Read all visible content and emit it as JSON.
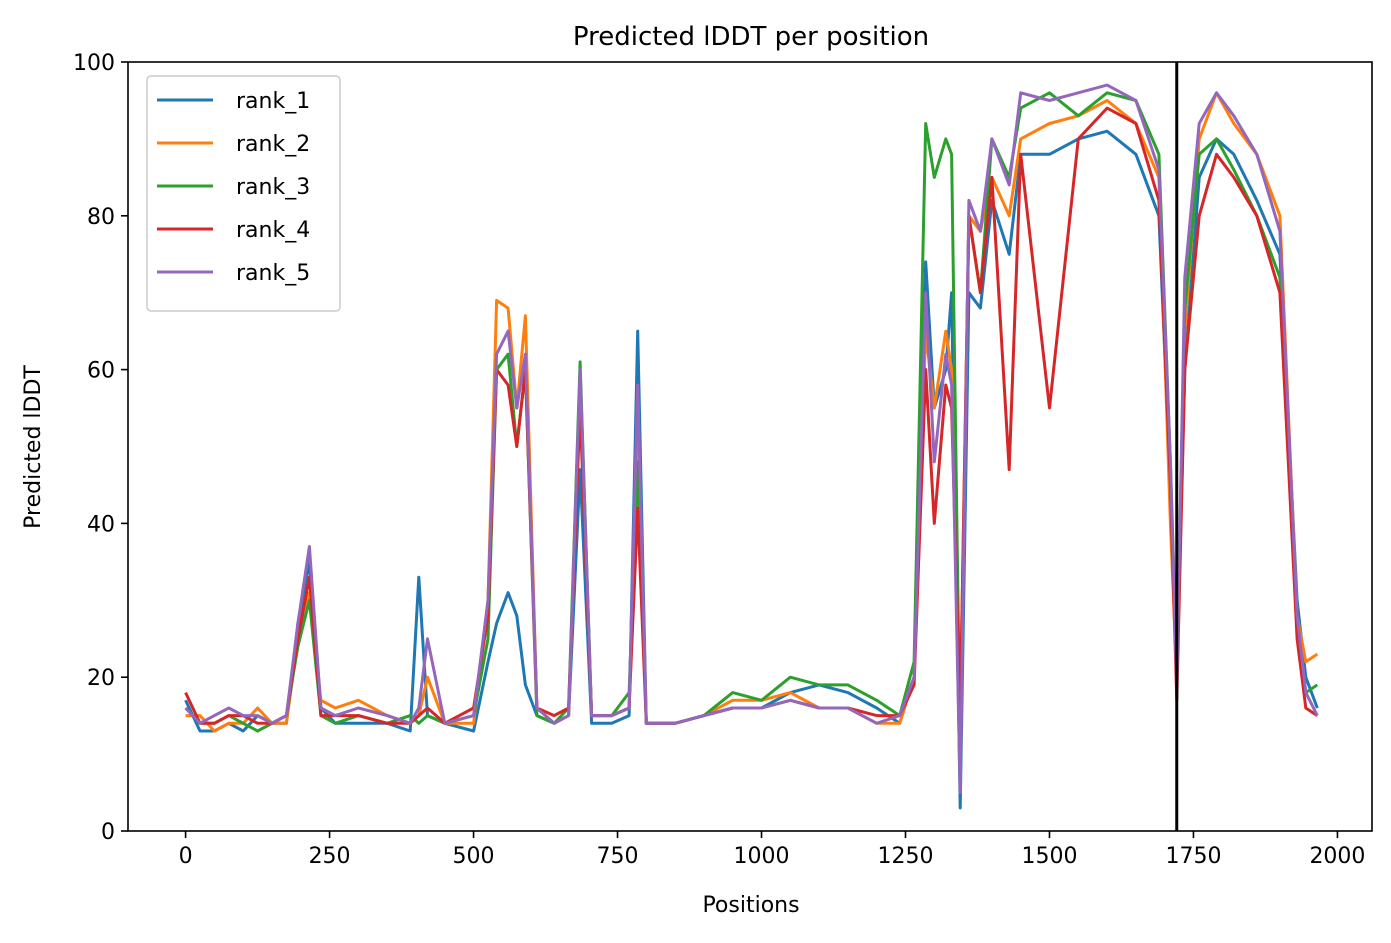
{
  "chart_data": {
    "type": "line",
    "title": "Predicted lDDT per position",
    "xlabel": "Positions",
    "ylabel": "Predicted lDDT",
    "xlim": [
      -100,
      2060
    ],
    "ylim": [
      0,
      100
    ],
    "xticks": [
      0,
      250,
      500,
      750,
      1000,
      1250,
      1500,
      1750,
      2000
    ],
    "yticks": [
      0,
      20,
      40,
      60,
      80,
      100
    ],
    "grid": false,
    "legend_position": "top-left",
    "vline": 1721,
    "vline_color": "#000000",
    "x": [
      0,
      25,
      50,
      75,
      100,
      125,
      150,
      175,
      195,
      215,
      235,
      260,
      300,
      350,
      390,
      405,
      420,
      450,
      500,
      525,
      540,
      560,
      575,
      590,
      610,
      640,
      665,
      685,
      705,
      740,
      770,
      785,
      800,
      850,
      900,
      950,
      1000,
      1050,
      1100,
      1150,
      1200,
      1240,
      1265,
      1285,
      1300,
      1320,
      1330,
      1345,
      1360,
      1380,
      1400,
      1430,
      1450,
      1500,
      1550,
      1600,
      1650,
      1690,
      1710,
      1721,
      1735,
      1760,
      1790,
      1820,
      1860,
      1900,
      1930,
      1945,
      1965
    ],
    "series": [
      {
        "name": "rank_1",
        "color": "#1f77b4",
        "values": [
          17,
          13,
          13,
          14,
          13,
          15,
          14,
          14,
          27,
          35,
          16,
          14,
          14,
          14,
          13,
          33,
          15,
          14,
          13,
          22,
          27,
          31,
          28,
          19,
          15,
          14,
          15,
          47,
          14,
          14,
          15,
          65,
          14,
          14,
          15,
          16,
          16,
          18,
          19,
          18,
          16,
          14,
          20,
          74,
          55,
          60,
          70,
          3,
          70,
          68,
          82,
          75,
          88,
          88,
          90,
          91,
          88,
          80,
          45,
          20,
          60,
          85,
          90,
          88,
          82,
          75,
          30,
          20,
          16
        ]
      },
      {
        "name": "rank_2",
        "color": "#ff7f0e",
        "values": [
          15,
          15,
          13,
          14,
          14,
          16,
          14,
          14,
          25,
          31,
          17,
          16,
          17,
          15,
          14,
          15,
          20,
          14,
          14,
          30,
          69,
          68,
          55,
          67,
          16,
          14,
          15,
          58,
          15,
          15,
          16,
          55,
          14,
          14,
          15,
          17,
          17,
          18,
          16,
          16,
          14,
          14,
          20,
          65,
          55,
          65,
          60,
          15,
          80,
          78,
          85,
          80,
          90,
          92,
          93,
          95,
          92,
          85,
          40,
          20,
          65,
          90,
          96,
          92,
          88,
          80,
          28,
          22,
          23
        ]
      },
      {
        "name": "rank_3",
        "color": "#2ca02c",
        "values": [
          16,
          14,
          14,
          15,
          14,
          13,
          14,
          15,
          24,
          30,
          15,
          14,
          15,
          14,
          15,
          14,
          15,
          14,
          15,
          25,
          60,
          62,
          50,
          60,
          15,
          14,
          16,
          61,
          15,
          15,
          18,
          48,
          14,
          14,
          15,
          18,
          17,
          20,
          19,
          19,
          17,
          15,
          22,
          92,
          85,
          90,
          88,
          10,
          80,
          70,
          90,
          85,
          94,
          96,
          93,
          96,
          95,
          88,
          48,
          21,
          68,
          88,
          90,
          86,
          80,
          72,
          27,
          18,
          19
        ]
      },
      {
        "name": "rank_4",
        "color": "#d62728",
        "values": [
          18,
          14,
          14,
          15,
          15,
          14,
          14,
          15,
          25,
          33,
          15,
          15,
          15,
          14,
          14,
          15,
          16,
          14,
          16,
          28,
          60,
          58,
          50,
          60,
          16,
          15,
          16,
          55,
          15,
          15,
          16,
          42,
          14,
          14,
          15,
          16,
          16,
          17,
          16,
          16,
          15,
          15,
          19,
          60,
          40,
          58,
          55,
          15,
          80,
          70,
          85,
          47,
          88,
          55,
          90,
          94,
          92,
          82,
          45,
          17,
          60,
          80,
          88,
          85,
          80,
          70,
          25,
          16,
          15
        ]
      },
      {
        "name": "rank_5",
        "color": "#9467bd",
        "values": [
          16,
          14,
          15,
          16,
          15,
          15,
          14,
          15,
          27,
          37,
          16,
          15,
          16,
          15,
          14,
          16,
          25,
          14,
          15,
          30,
          62,
          65,
          55,
          62,
          16,
          14,
          15,
          60,
          15,
          15,
          16,
          58,
          14,
          14,
          15,
          16,
          16,
          17,
          16,
          16,
          14,
          15,
          20,
          70,
          48,
          62,
          58,
          5,
          82,
          78,
          90,
          84,
          96,
          95,
          96,
          97,
          95,
          86,
          48,
          19,
          72,
          92,
          96,
          93,
          88,
          78,
          28,
          18,
          15
        ]
      }
    ]
  }
}
